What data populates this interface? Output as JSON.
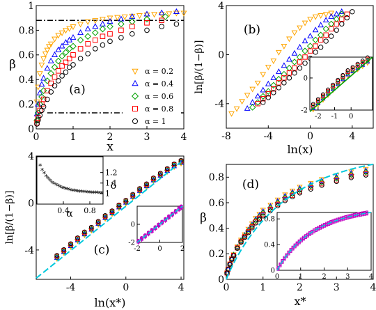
{
  "figure": {
    "legend_entries": [
      "α = 0.2",
      "α = 0.4",
      "α = 0.6",
      "α = 0.8",
      "α = 1"
    ],
    "series_colors": [
      "#FFA500",
      "#0000FF",
      "#00A000",
      "#FF0000",
      "#000000"
    ],
    "series_markers": [
      "triangle-down",
      "triangle-up",
      "diamond",
      "square",
      "circle"
    ],
    "fit_line_color": "#00C8DC",
    "inset_a_color": "#00A000",
    "inset_d_color": "#C000C0"
  },
  "chart_data": [
    {
      "panel": "(a)",
      "type": "scatter",
      "xlabel": "x",
      "ylabel": "β",
      "xlim": [
        0,
        4
      ],
      "ylim": [
        0,
        1
      ],
      "x_ticks": [
        "0",
        "1",
        "2",
        "3",
        "4"
      ],
      "y_ticks": [
        "0",
        "0.2",
        "0.4",
        "0.6",
        "0.8",
        "1"
      ],
      "reference_lines": [
        {
          "style": "dash-dot",
          "y": 0.88
        },
        {
          "style": "dash-dot",
          "y": 0.13,
          "x_from": 0.3
        }
      ],
      "legend_position": "bottom-right",
      "series": [
        {
          "name": "α = 0.2",
          "marker": "triangle-down",
          "x": [
            0.02,
            0.05,
            0.1,
            0.15,
            0.2,
            0.25,
            0.3,
            0.35,
            0.4,
            0.5,
            0.6,
            0.7,
            0.8,
            0.9,
            1.0,
            1.2,
            1.4,
            1.6,
            1.8,
            2.0,
            2.2,
            2.4,
            2.6,
            2.8,
            3.0,
            3.2,
            3.4,
            3.6,
            3.8,
            4.0
          ],
          "y": [
            0.22,
            0.34,
            0.45,
            0.52,
            0.57,
            0.61,
            0.64,
            0.67,
            0.69,
            0.73,
            0.76,
            0.78,
            0.8,
            0.815,
            0.83,
            0.85,
            0.87,
            0.88,
            0.89,
            0.9,
            0.905,
            0.91,
            0.915,
            0.92,
            0.925,
            0.93,
            0.93,
            0.935,
            0.94,
            0.94
          ]
        },
        {
          "name": "α = 0.4",
          "marker": "triangle-up",
          "x": [
            0.02,
            0.05,
            0.1,
            0.15,
            0.2,
            0.3,
            0.4,
            0.5,
            0.6,
            0.7,
            0.8,
            0.9,
            1.0,
            1.2,
            1.4,
            1.6,
            1.8,
            2.0,
            2.3,
            2.6,
            3.0,
            3.4,
            3.8
          ],
          "y": [
            0.12,
            0.2,
            0.29,
            0.36,
            0.41,
            0.49,
            0.55,
            0.6,
            0.64,
            0.67,
            0.7,
            0.72,
            0.74,
            0.78,
            0.81,
            0.83,
            0.85,
            0.87,
            0.89,
            0.91,
            0.93,
            0.94,
            0.95
          ]
        },
        {
          "name": "α = 0.6",
          "marker": "diamond",
          "x": [
            0.02,
            0.05,
            0.1,
            0.15,
            0.2,
            0.3,
            0.4,
            0.5,
            0.6,
            0.7,
            0.8,
            0.9,
            1.0,
            1.2,
            1.4,
            1.6,
            1.8,
            2.0,
            2.3,
            2.6,
            3.0,
            3.5
          ],
          "y": [
            0.07,
            0.13,
            0.2,
            0.26,
            0.31,
            0.39,
            0.45,
            0.5,
            0.55,
            0.59,
            0.62,
            0.65,
            0.67,
            0.72,
            0.75,
            0.78,
            0.81,
            0.83,
            0.85,
            0.87,
            0.89,
            0.91
          ]
        },
        {
          "name": "α = 0.8",
          "marker": "square",
          "x": [
            0.02,
            0.05,
            0.1,
            0.15,
            0.2,
            0.3,
            0.4,
            0.5,
            0.6,
            0.7,
            0.8,
            0.9,
            1.0,
            1.2,
            1.4,
            1.6,
            1.8,
            2.0,
            2.3,
            2.6,
            3.0,
            3.4
          ],
          "y": [
            0.05,
            0.09,
            0.15,
            0.2,
            0.24,
            0.31,
            0.37,
            0.42,
            0.47,
            0.51,
            0.54,
            0.57,
            0.6,
            0.65,
            0.69,
            0.72,
            0.75,
            0.77,
            0.8,
            0.83,
            0.86,
            0.88
          ]
        },
        {
          "name": "α = 1",
          "marker": "circle",
          "x": [
            0.02,
            0.05,
            0.1,
            0.15,
            0.2,
            0.3,
            0.4,
            0.5,
            0.6,
            0.7,
            0.8,
            0.9,
            1.0,
            1.2,
            1.4,
            1.6,
            1.8,
            2.0,
            2.3,
            2.6,
            3.0,
            3.4,
            3.8
          ],
          "y": [
            0.04,
            0.07,
            0.11,
            0.15,
            0.18,
            0.24,
            0.3,
            0.35,
            0.39,
            0.43,
            0.46,
            0.5,
            0.52,
            0.57,
            0.61,
            0.65,
            0.68,
            0.71,
            0.74,
            0.77,
            0.8,
            0.83,
            0.85
          ]
        }
      ]
    },
    {
      "panel": "(b)",
      "type": "scatter",
      "xlabel": "ln(x)",
      "ylabel": "ln[β/(1−β)]",
      "xlim": [
        -8,
        6
      ],
      "ylim": [
        -6,
        4
      ],
      "x_ticks": [
        "-8",
        "-4",
        "0",
        "4"
      ],
      "y_ticks": [
        "-4",
        "0",
        "4"
      ],
      "series": [
        {
          "name": "α = 0.2",
          "marker": "triangle-down",
          "x": [
            -7.5,
            -7.0,
            -6.5,
            -6.0,
            -5.5,
            -5.0,
            -4.5,
            -4.0,
            -3.5,
            -3.0,
            -2.5,
            -2.0,
            -1.5,
            -1.0,
            -0.5,
            0.0,
            0.5,
            1.0,
            1.5,
            2.0
          ],
          "y": [
            -4.8,
            -4.4,
            -3.8,
            -3.3,
            -2.8,
            -2.3,
            -1.6,
            -1.0,
            -0.5,
            0.2,
            0.7,
            1.3,
            1.8,
            2.2,
            2.6,
            2.9,
            3.1,
            3.2,
            3.3,
            3.4
          ]
        },
        {
          "name": "α = 0.4",
          "marker": "triangle-up",
          "x": [
            -6.0,
            -5.5,
            -5.0,
            -4.5,
            -4.0,
            -3.5,
            -3.0,
            -2.5,
            -2.0,
            -1.5,
            -1.0,
            -0.5,
            0.0,
            0.5,
            1.0,
            1.5,
            2.0,
            2.5,
            3.0
          ],
          "y": [
            -4.4,
            -3.9,
            -3.4,
            -2.9,
            -2.4,
            -1.9,
            -1.4,
            -0.9,
            -0.4,
            0.1,
            0.6,
            1.1,
            1.5,
            2.0,
            2.4,
            2.8,
            3.1,
            3.3,
            3.5
          ]
        },
        {
          "name": "α = 0.6",
          "marker": "diamond",
          "x": [
            -5.5,
            -5.0,
            -4.5,
            -4.0,
            -3.5,
            -3.0,
            -2.5,
            -2.0,
            -1.5,
            -1.0,
            -0.5,
            0.0,
            0.5,
            1.0,
            1.5,
            2.0,
            2.5,
            3.0
          ],
          "y": [
            -4.3,
            -3.9,
            -3.4,
            -3.0,
            -2.5,
            -2.0,
            -1.6,
            -1.1,
            -0.6,
            -0.2,
            0.3,
            0.7,
            1.2,
            1.6,
            2.1,
            2.5,
            2.9,
            3.3
          ]
        },
        {
          "name": "α = 0.8",
          "marker": "square",
          "x": [
            -5.0,
            -4.5,
            -4.0,
            -3.5,
            -3.0,
            -2.5,
            -2.0,
            -1.5,
            -1.0,
            -0.5,
            0.0,
            0.5,
            1.0,
            1.5,
            2.0,
            2.5,
            3.0,
            3.5
          ],
          "y": [
            -4.0,
            -3.6,
            -3.2,
            -2.8,
            -2.3,
            -1.9,
            -1.5,
            -1.1,
            -0.6,
            -0.2,
            0.3,
            0.7,
            1.2,
            1.6,
            2.1,
            2.5,
            2.9,
            3.3
          ]
        },
        {
          "name": "α = 1",
          "marker": "circle",
          "x": [
            -4.5,
            -4.0,
            -3.5,
            -3.0,
            -2.5,
            -2.0,
            -1.5,
            -1.0,
            -0.5,
            0.0,
            0.5,
            1.0,
            1.5,
            2.0,
            2.5,
            3.0,
            3.5,
            4.0
          ],
          "y": [
            -3.9,
            -3.5,
            -3.1,
            -2.7,
            -2.3,
            -1.9,
            -1.5,
            -1.1,
            -0.7,
            -0.3,
            0.2,
            0.6,
            1.1,
            1.5,
            2.0,
            2.5,
            3.0,
            3.5
          ]
        }
      ],
      "inset": {
        "type": "scatter",
        "xlim": [
          -2.5,
          1.3
        ],
        "ylim": [
          -2,
          1.3
        ],
        "x_ticks": [
          "-2",
          "-1",
          "0"
        ],
        "y_ticks": [
          "-2",
          "0"
        ],
        "x": [
          -2.3,
          -2.0,
          -1.7,
          -1.4,
          -1.1,
          -0.8,
          -0.5,
          -0.2,
          0.1,
          0.4,
          0.7,
          1.0
        ],
        "y": [
          -1.8,
          -1.5,
          -1.2,
          -0.9,
          -0.6,
          -0.3,
          0.0,
          0.3,
          0.5,
          0.7,
          0.9,
          1.1
        ]
      }
    },
    {
      "panel": "(c)",
      "type": "scatter",
      "xlabel": "ln(x*)",
      "ylabel": "ln[β/(1−β)]",
      "xlim": [
        -6.5,
        4.2
      ],
      "ylim": [
        -6.5,
        4
      ],
      "x_ticks": [
        "-4",
        "0",
        "4"
      ],
      "y_ticks": [
        "-4",
        "0",
        "4"
      ],
      "fit_line": {
        "x": [
          -6.5,
          4.0
        ],
        "y": [
          -6.4,
          3.5
        ]
      },
      "series_x": [
        -5.0,
        -4.5,
        -4.0,
        -3.5,
        -3.0,
        -2.5,
        -2.0,
        -1.5,
        -1.0,
        -0.5,
        0.0,
        0.5,
        1.0,
        1.5,
        2.0,
        2.5,
        3.0,
        3.5,
        4.0
      ],
      "series_y": [
        -4.6,
        -4.1,
        -3.6,
        -3.1,
        -2.6,
        -2.2,
        -1.7,
        -1.2,
        -0.8,
        -0.3,
        0.1,
        0.6,
        1.1,
        1.5,
        2.0,
        2.4,
        2.8,
        3.2,
        3.5
      ],
      "inset_left": {
        "xlabel": "α",
        "ylabel": "δ",
        "xlim": [
          0,
          1
        ],
        "ylim": [
          0.9,
          1.35
        ],
        "x_ticks": [
          "0.4",
          "0.8"
        ],
        "y_ticks": [
          "1",
          "1.1",
          "1.2"
        ],
        "x": [
          0.05,
          0.08,
          0.11,
          0.14,
          0.17,
          0.2,
          0.23,
          0.26,
          0.29,
          0.32,
          0.35,
          0.38,
          0.41,
          0.44,
          0.47,
          0.5,
          0.53,
          0.56,
          0.59,
          0.62,
          0.65,
          0.68,
          0.71,
          0.74,
          0.77,
          0.8,
          0.83,
          0.86,
          0.89,
          0.92,
          0.95,
          0.98
        ],
        "y": [
          1.26,
          1.22,
          1.19,
          1.16,
          1.14,
          1.12,
          1.1,
          1.09,
          1.08,
          1.07,
          1.06,
          1.05,
          1.045,
          1.04,
          1.035,
          1.03,
          1.025,
          1.022,
          1.02,
          1.017,
          1.015,
          1.013,
          1.011,
          1.01,
          1.008,
          1.006,
          1.005,
          1.004,
          1.003,
          1.002,
          1.001,
          1.0
        ]
      },
      "inset_right": {
        "xlim": [
          -2,
          2
        ],
        "ylim": [
          -2,
          2
        ],
        "x_ticks": [
          "-2",
          "0",
          "2"
        ],
        "y_ticks": [
          "-2",
          "0"
        ],
        "x": [
          -1.9,
          -1.6,
          -1.3,
          -1.0,
          -0.7,
          -0.4,
          -0.1,
          0.2,
          0.5,
          0.8,
          1.1,
          1.4,
          1.7,
          1.9
        ],
        "y": [
          -1.9,
          -1.6,
          -1.3,
          -1.0,
          -0.7,
          -0.4,
          -0.1,
          0.2,
          0.5,
          0.8,
          1.1,
          1.4,
          1.7,
          1.9
        ]
      }
    },
    {
      "panel": "(d)",
      "type": "scatter",
      "xlabel": "x*",
      "ylabel": "β",
      "xlim": [
        0,
        4
      ],
      "ylim": [
        0,
        0.9
      ],
      "x_ticks": [
        "0",
        "1",
        "2",
        "3",
        "4"
      ],
      "y_ticks": [
        "0",
        "0.2",
        "0.4",
        "0.6",
        "0.8"
      ],
      "fit_line": {
        "formula": "1-exp(-0.62*x^0.95)"
      },
      "series_x": [
        0.02,
        0.05,
        0.1,
        0.15,
        0.2,
        0.3,
        0.4,
        0.5,
        0.6,
        0.7,
        0.8,
        0.9,
        1.0,
        1.2,
        1.4,
        1.6,
        1.8,
        2.0,
        2.3,
        2.6,
        3.0,
        3.4,
        3.8
      ],
      "series_y": [
        0.05,
        0.08,
        0.12,
        0.16,
        0.19,
        0.25,
        0.3,
        0.34,
        0.38,
        0.42,
        0.46,
        0.49,
        0.52,
        0.56,
        0.6,
        0.64,
        0.67,
        0.7,
        0.73,
        0.76,
        0.79,
        0.82,
        0.84
      ],
      "inset": {
        "xlim": [
          0,
          4
        ],
        "ylim": [
          0,
          0.9
        ],
        "x_ticks": [
          "0",
          "1",
          "2",
          "3",
          "4"
        ],
        "y_ticks": [
          "0",
          "0.4",
          "0.8"
        ]
      }
    }
  ]
}
